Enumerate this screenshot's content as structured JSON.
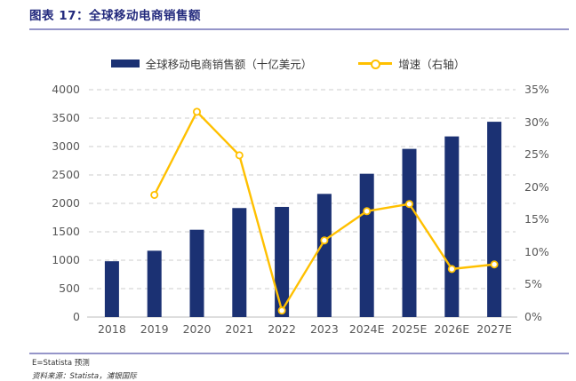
{
  "page": {
    "title": "图表 17：全球移动电商销售额",
    "footnote": "E=Statista 预测",
    "source": "资料来源：Statista，浦银国际"
  },
  "colors": {
    "bar": "#1b3173",
    "line": "#ffc000",
    "marker_fill": "#ffffff",
    "grid": "#d8d8d8",
    "axis_line": "#c9c9c9",
    "title": "#232a7d",
    "divider": "#9595c9",
    "tick_text": "#595959"
  },
  "legend": [
    {
      "label": "全球移动电商销售额（十亿美元）",
      "type": "bar"
    },
    {
      "label": "增速（右轴）",
      "type": "line"
    }
  ],
  "chart_data": {
    "type": "bar",
    "title": "全球移动电商销售额",
    "categories": [
      "2018",
      "2019",
      "2020",
      "2021",
      "2022",
      "2023",
      "2024E",
      "2025E",
      "2026E",
      "2027E"
    ],
    "series": [
      {
        "name": "全球移动电商销售额（十亿美元）",
        "type": "bar",
        "axis": "left",
        "values": [
          982,
          1167,
          1536,
          1918,
          1938,
          2167,
          2521,
          2959,
          3178,
          3436
        ]
      },
      {
        "name": "增速（右轴）",
        "type": "line",
        "axis": "right",
        "values": [
          null,
          18.8,
          31.6,
          24.9,
          1.0,
          11.8,
          16.3,
          17.4,
          7.4,
          8.1
        ]
      }
    ],
    "left_axis": {
      "min": 0,
      "max": 4000,
      "step": 500,
      "tick_labels": [
        "4000",
        "3500",
        "3000",
        "2500",
        "2000",
        "1500",
        "1000",
        "500",
        "0"
      ]
    },
    "right_axis": {
      "min": 0,
      "max": 35,
      "step": 5,
      "unit": "%",
      "tick_labels": [
        "35%",
        "30%",
        "25%",
        "20%",
        "15%",
        "10%",
        "5%",
        "0%"
      ]
    },
    "grid": "dashed-horizontal",
    "legend_position": "top"
  }
}
